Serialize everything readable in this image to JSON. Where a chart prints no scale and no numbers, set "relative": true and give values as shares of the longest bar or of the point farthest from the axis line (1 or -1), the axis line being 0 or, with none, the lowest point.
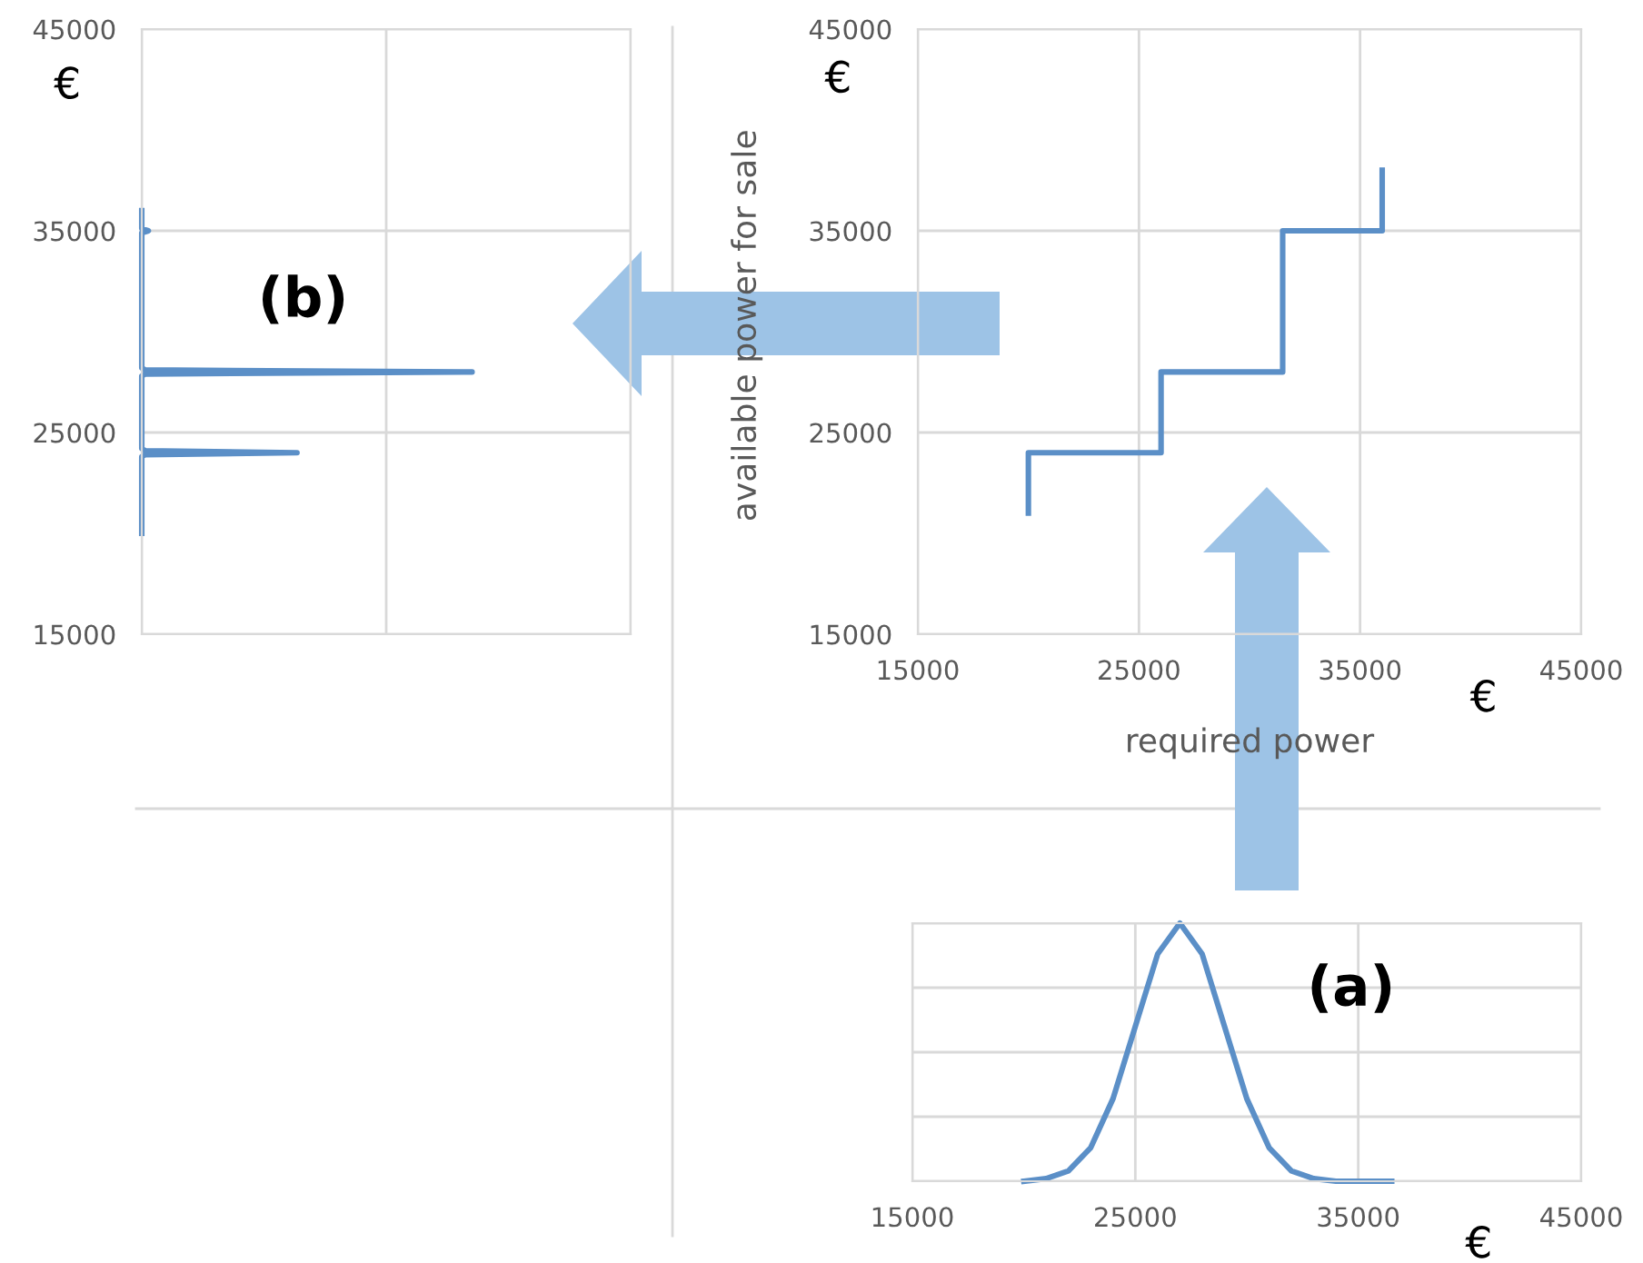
{
  "chart_data": [
    {
      "type": "line",
      "orientation": "horizontal",
      "relative": true,
      "ylabel": "€",
      "ylim": [
        15000,
        45000
      ],
      "yticks": [
        15000,
        25000,
        35000,
        45000
      ],
      "tick_labels": "y",
      "grid": true,
      "annotations": [
        "(b)"
      ],
      "series": [
        {
          "color": "#5b8fc7",
          "x": [
            20000,
            23800,
            23900,
            24000,
            24100,
            24200,
            27800,
            27900,
            28000,
            28100,
            28200,
            34900,
            35000,
            35100,
            36000
          ],
          "values": [
            0,
            0,
            0.01,
            0.47,
            0.01,
            0,
            0,
            0.01,
            1,
            0.01,
            0,
            0,
            0.02,
            0,
            0
          ]
        }
      ]
    },
    {
      "type": "line",
      "xlabel": "required power",
      "ylabel": "available power for sale",
      "xlim": [
        15000,
        45000
      ],
      "xticks": [
        15000,
        25000,
        35000,
        45000
      ],
      "ylim": [
        15000,
        45000
      ],
      "yticks": [
        15000,
        25000,
        35000,
        45000
      ],
      "grid": true,
      "annotations": [
        "€",
        "€"
      ],
      "series": [
        {
          "color": "#5b8fc7",
          "x": [
            20000,
            20000,
            26000,
            26000,
            31500,
            31500,
            36000,
            36000
          ],
          "values": [
            21000,
            24000,
            24000,
            28000,
            28000,
            35000,
            35000,
            38000
          ]
        }
      ]
    },
    {
      "type": "line",
      "relative": true,
      "xlabel": "€",
      "xlim": [
        15000,
        45000
      ],
      "xticks": [
        15000,
        25000,
        35000,
        45000
      ],
      "tick_labels": "x",
      "grid": true,
      "annotations": [
        "(a)"
      ],
      "series": [
        {
          "color": "#5b8fc7",
          "x": [
            20000,
            21000,
            22000,
            23000,
            24000,
            25000,
            26000,
            27000,
            28000,
            29000,
            30000,
            31000,
            32000,
            33000,
            34000,
            36500
          ],
          "values": [
            0,
            0.01,
            0.04,
            0.13,
            0.32,
            0.6,
            0.88,
            1,
            0.88,
            0.6,
            0.32,
            0.13,
            0.04,
            0.01,
            0,
            0
          ]
        }
      ]
    }
  ]
}
